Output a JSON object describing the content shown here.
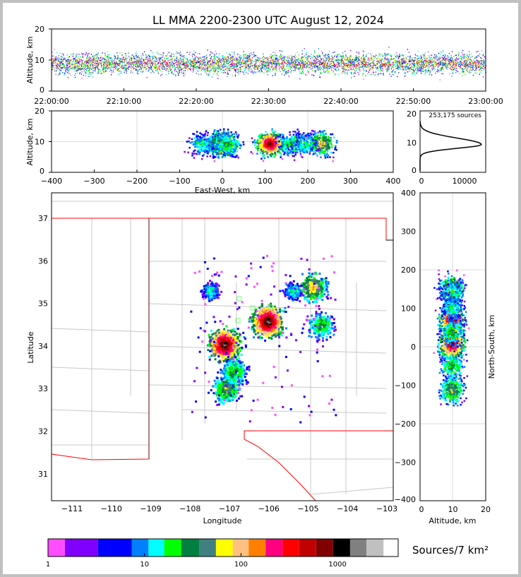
{
  "chart_data": {
    "type": "heatmap",
    "title": "LL MMA 2200-2300 UTC August 12, 2024",
    "panels": {
      "time_height": {
        "ylabel": "Altitude, km",
        "xticks": [
          "22:00:00",
          "22:10:00",
          "22:20:00",
          "22:30:00",
          "22:40:00",
          "22:50:00",
          "23:00:00"
        ],
        "yticks": [
          "0",
          "10",
          "20"
        ],
        "ylim": [
          0,
          20
        ]
      },
      "ew_height": {
        "xlabel": "East-West, km",
        "ylabel": "Altitude, km",
        "xticks": [
          "−400",
          "−300",
          "−200",
          "−100",
          "0",
          "100",
          "200",
          "300",
          "400"
        ],
        "yticks": [
          "0",
          "10",
          "20"
        ],
        "xlim": [
          -400,
          400
        ],
        "ylim": [
          0,
          20
        ]
      },
      "histogram": {
        "annotation": "253,175 sources",
        "xticks": [
          "0",
          "10000"
        ],
        "yticks": [
          "0",
          "10",
          "20"
        ],
        "peak_altitude_km": 9,
        "peak_count": 14000
      },
      "plan_view": {
        "xlabel": "Longitude",
        "ylabel": "Latitude",
        "xticks": [
          "−111",
          "−110",
          "−109",
          "−108",
          "−107",
          "−106",
          "−105",
          "−104",
          "−103"
        ],
        "yticks": [
          "31",
          "32",
          "33",
          "34",
          "35",
          "36",
          "37"
        ],
        "xlim": [
          -111.5,
          -102.8
        ],
        "ylim": [
          30.4,
          37.6
        ]
      },
      "ns_height": {
        "xlabel": "Altitude, km",
        "ylabel": "North-South, km",
        "xticks": [
          "0",
          "10",
          "20"
        ],
        "yticks": [
          "400",
          "300",
          "200",
          "100",
          "0",
          "−100",
          "−200",
          "−300",
          "−400"
        ],
        "xlim": [
          0,
          20
        ],
        "ylim": [
          -400,
          400
        ]
      }
    },
    "clusters": [
      {
        "lon": -107.15,
        "lat": 34.05,
        "ew_km": 0,
        "ns_km": 10,
        "spread": 0.35,
        "intensity": 1.0
      },
      {
        "lon": -106.05,
        "lat": 34.6,
        "ew_km": 110,
        "ns_km": 70,
        "spread": 0.35,
        "intensity": 1.0
      },
      {
        "lon": -107.1,
        "lat": 33.0,
        "ew_km": -10,
        "ns_km": -110,
        "spread": 0.3,
        "intensity": 0.5
      },
      {
        "lon": -104.9,
        "lat": 35.4,
        "ew_km": 230,
        "ns_km": 150,
        "spread": 0.3,
        "intensity": 0.6
      },
      {
        "lon": -104.7,
        "lat": 34.5,
        "ew_km": 160,
        "ns_km": 40,
        "spread": 0.3,
        "intensity": 0.4
      },
      {
        "lon": -106.9,
        "lat": 33.4,
        "ew_km": 10,
        "ns_km": -50,
        "spread": 0.3,
        "intensity": 0.4
      },
      {
        "lon": -105.4,
        "lat": 35.3,
        "ew_km": 190,
        "ns_km": 140,
        "spread": 0.2,
        "intensity": 0.3
      },
      {
        "lon": -107.5,
        "lat": 35.3,
        "ew_km": -50,
        "ns_km": 100,
        "spread": 0.2,
        "intensity": 0.3
      }
    ],
    "colorbar": {
      "label": "Sources/7 km²",
      "ticks": [
        "1",
        "10",
        "100",
        "1000"
      ],
      "colors": [
        "#ff4dff",
        "#8000ff",
        "#0000ff",
        "#0080ff",
        "#00ffff",
        "#00ff00",
        "#008040",
        "#408080",
        "#ffff00",
        "#ffc080",
        "#ff8000",
        "#ff0080",
        "#ff0000",
        "#c00000",
        "#800000",
        "#000000",
        "#808080",
        "#c0c0c0",
        "#ffffff"
      ]
    }
  }
}
